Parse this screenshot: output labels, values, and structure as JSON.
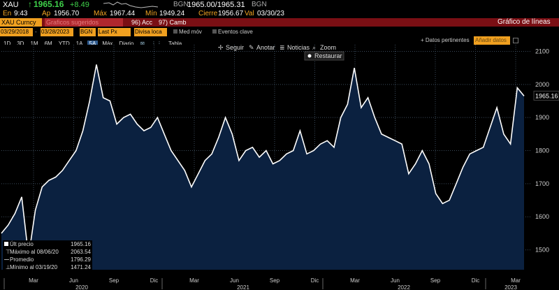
{
  "ticker": {
    "symbol": "XAU",
    "last": "1965.16",
    "change": "+8.49",
    "bid_ask_source": "BGN",
    "bid_ask": "1965.00/1965.31",
    "bid_ask_source2": "BGN"
  },
  "quote_row": {
    "time_label": "En",
    "time": "9:43",
    "open_label": "Ap",
    "open": "1956.70",
    "high_label": "Máx",
    "high": "1967.44",
    "low_label": "Mín",
    "low": "1949.24",
    "close_label": "Cierre",
    "close": "1956.67",
    "val_label": "Val",
    "val_date": "03/30/23"
  },
  "red_bar": {
    "security": "XAU Curncy",
    "field_placeholder": "Graficos sugeridos",
    "actions": "96) Acc",
    "change_menu": "97) Camb",
    "chart_title": "Gráfico de líneas"
  },
  "settings_row": {
    "start_date": "03/29/2018",
    "end_date": "03/28/2023",
    "source": "BGN",
    "field": "Last Px",
    "currency": "Divisa loca",
    "avg_label": "Med móv",
    "events_label": "Eventos clave"
  },
  "range_tabs": [
    "1D",
    "3D",
    "1M",
    "6M",
    "YTD",
    "1A",
    "5A",
    "Máx"
  ],
  "active_tab": "5A",
  "period": "Diario",
  "table_label": "Tabla",
  "right_controls": {
    "datos": "+ Datos pertinentes",
    "add_data": "Añadir datos"
  },
  "chart_toolbar": {
    "follow": "Seguir",
    "annotate": "Anotar",
    "news": "Noticias",
    "zoom": "Zoom",
    "reset": "Restaurar"
  },
  "legend": {
    "items": [
      {
        "label": "Últ precio",
        "value": "1965.16"
      },
      {
        "label": "Máximo al 08/06/20",
        "value": "2063.54"
      },
      {
        "label": "Promedio",
        "value": "1796.29"
      },
      {
        "label": "Mínimo al 03/19/20",
        "value": "1471.24"
      }
    ]
  },
  "colors": {
    "line": "#ffffff",
    "fill": "#0b2140",
    "grid": "#3a4a5a",
    "accent": "#f0a020",
    "positive": "#3fd14a",
    "red_bar": "#7a0f14"
  },
  "chart_data": {
    "type": "area",
    "title": "",
    "series_name": "XAU Curncy Last Px",
    "ylim": [
      1440,
      2120
    ],
    "yticks": [
      1500,
      1600,
      1700,
      1800,
      1900,
      2000,
      2100
    ],
    "last_value_label": "1965.16",
    "x_month_labels": [
      "Mar",
      "Jun",
      "Sep",
      "Dic",
      "Mar",
      "Jun",
      "Sep",
      "Dic",
      "Mar",
      "Jun",
      "Sep",
      "Dic",
      "Mar"
    ],
    "x_year_labels": [
      "2020",
      "2021",
      "2022",
      "2023"
    ],
    "x": [
      "2020-01",
      "2020-02",
      "2020-02b",
      "2020-03",
      "2020-03b",
      "2020-03c",
      "2020-04",
      "2020-04b",
      "2020-05",
      "2020-05b",
      "2020-06",
      "2020-06b",
      "2020-07",
      "2020-07b",
      "2020-08",
      "2020-08b",
      "2020-09",
      "2020-09b",
      "2020-10",
      "2020-10b",
      "2020-11",
      "2020-11b",
      "2020-12",
      "2020-12b",
      "2021-01",
      "2021-01b",
      "2021-02",
      "2021-02b",
      "2021-03",
      "2021-03b",
      "2021-04",
      "2021-04b",
      "2021-05",
      "2021-05b",
      "2021-06",
      "2021-06b",
      "2021-07",
      "2021-07b",
      "2021-08",
      "2021-08b",
      "2021-09",
      "2021-09b",
      "2021-10",
      "2021-10b",
      "2021-11",
      "2021-11b",
      "2021-12",
      "2021-12b",
      "2022-01",
      "2022-01b",
      "2022-02",
      "2022-02b",
      "2022-03",
      "2022-03b",
      "2022-04",
      "2022-04b",
      "2022-05",
      "2022-05b",
      "2022-06",
      "2022-06b",
      "2022-07",
      "2022-07b",
      "2022-08",
      "2022-08b",
      "2022-09",
      "2022-09b",
      "2022-10",
      "2022-10b",
      "2022-11",
      "2022-11b",
      "2022-12",
      "2022-12b",
      "2023-01",
      "2023-01b",
      "2023-02",
      "2023-02b",
      "2023-03",
      "2023-03b"
    ],
    "values": [
      1550,
      1575,
      1610,
      1660,
      1480,
      1620,
      1690,
      1710,
      1720,
      1740,
      1770,
      1800,
      1860,
      1950,
      2060,
      1960,
      1950,
      1880,
      1900,
      1910,
      1880,
      1860,
      1870,
      1900,
      1850,
      1800,
      1770,
      1740,
      1690,
      1730,
      1770,
      1790,
      1840,
      1900,
      1850,
      1770,
      1800,
      1810,
      1780,
      1800,
      1760,
      1770,
      1790,
      1800,
      1860,
      1790,
      1800,
      1820,
      1830,
      1810,
      1900,
      1940,
      2050,
      1930,
      1960,
      1900,
      1850,
      1840,
      1830,
      1820,
      1730,
      1760,
      1800,
      1760,
      1670,
      1640,
      1650,
      1700,
      1750,
      1790,
      1800,
      1810,
      1870,
      1930,
      1850,
      1820,
      1990,
      1965
    ]
  }
}
